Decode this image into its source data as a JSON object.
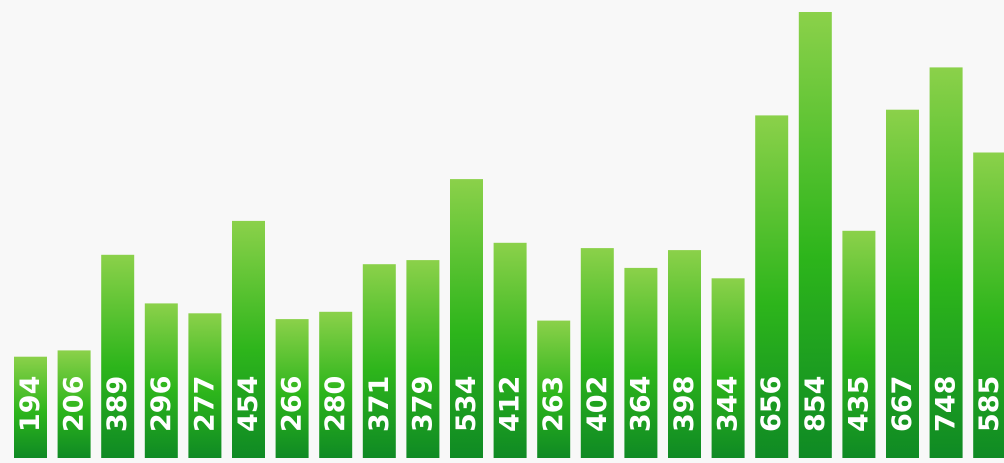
{
  "chart_data": {
    "type": "bar",
    "title": "",
    "xlabel": "",
    "ylabel": "",
    "grid": false,
    "legend": "none",
    "ylim": [
      0,
      900
    ],
    "values": [
      194,
      206,
      389,
      296,
      277,
      454,
      266,
      280,
      371,
      379,
      534,
      412,
      263,
      402,
      364,
      398,
      344,
      656,
      854,
      435,
      667,
      748,
      585
    ],
    "labels": [
      "194",
      "206",
      "389",
      "296",
      "277",
      "454",
      "266",
      "280",
      "371",
      "379",
      "534",
      "412",
      "263",
      "402",
      "364",
      "398",
      "344",
      "656",
      "854",
      "435",
      "667",
      "748",
      "585"
    ],
    "colors": {
      "background": "#f8f8f8",
      "bar_top": "#8bd14a",
      "bar_mid": "#2db51b",
      "bar_bottom": "#0f8a24",
      "label": "#ffffff"
    }
  }
}
